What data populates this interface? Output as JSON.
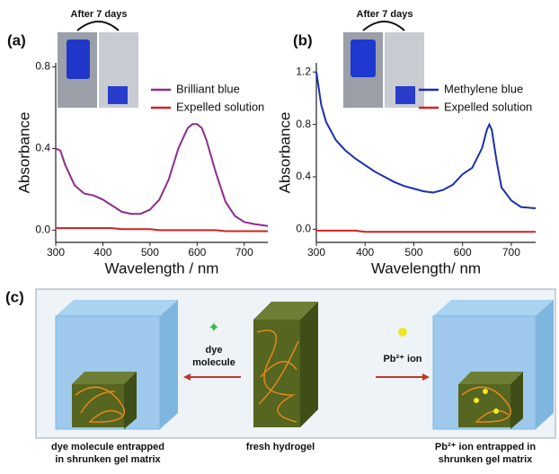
{
  "chart_data": [
    {
      "type": "line",
      "panel_label": "(a)",
      "inset_title": "After 7 days",
      "x_label": "Wavelength / nm",
      "y_label": "Absorbance",
      "xlim": [
        300,
        750
      ],
      "xticks": [
        300,
        400,
        500,
        600,
        700
      ],
      "ylim": [
        -0.06,
        0.82
      ],
      "yticks": [
        {
          "value": 0,
          "label": "0.0"
        },
        0.4,
        0.8
      ],
      "x": [
        300,
        310,
        320,
        340,
        360,
        380,
        400,
        420,
        440,
        460,
        480,
        500,
        520,
        540,
        560,
        580,
        590,
        600,
        610,
        620,
        640,
        660,
        680,
        700,
        720,
        750
      ],
      "series": [
        {
          "name": "Brilliant blue",
          "color": "#8e2c8e",
          "values": [
            0.4,
            0.39,
            0.32,
            0.22,
            0.18,
            0.17,
            0.15,
            0.12,
            0.09,
            0.08,
            0.08,
            0.1,
            0.15,
            0.25,
            0.4,
            0.5,
            0.52,
            0.52,
            0.5,
            0.44,
            0.28,
            0.14,
            0.07,
            0.04,
            0.03,
            0.02
          ]
        },
        {
          "name": "Expelled solution",
          "color": "#d42020",
          "values": [
            0.01,
            0.01,
            0.01,
            0.01,
            0.01,
            0.01,
            0.01,
            0.01,
            0.005,
            0.005,
            0.005,
            0.005,
            0.0,
            0.0,
            0.0,
            0.0,
            0.0,
            0.0,
            0.0,
            0.0,
            0.0,
            -0.005,
            -0.005,
            -0.005,
            -0.005,
            -0.005
          ]
        }
      ]
    },
    {
      "type": "line",
      "panel_label": "(b)",
      "inset_title": "After 7 days",
      "x_label": "Wavelength/ nm",
      "y_label": "Absorbance",
      "xlim": [
        300,
        750
      ],
      "xticks": [
        300,
        400,
        500,
        600,
        700
      ],
      "ylim": [
        -0.1,
        1.27
      ],
      "yticks": [
        {
          "value": 0,
          "label": "0.0"
        },
        0.4,
        0.8,
        1.2
      ],
      "x": [
        300,
        310,
        320,
        340,
        360,
        380,
        400,
        420,
        440,
        460,
        480,
        500,
        520,
        540,
        560,
        580,
        600,
        620,
        640,
        650,
        655,
        660,
        670,
        680,
        700,
        720,
        750
      ],
      "series": [
        {
          "name": "Methylene blue",
          "color": "#1a2fb0",
          "values": [
            1.2,
            0.95,
            0.82,
            0.68,
            0.6,
            0.54,
            0.49,
            0.44,
            0.4,
            0.36,
            0.33,
            0.31,
            0.29,
            0.28,
            0.3,
            0.34,
            0.42,
            0.47,
            0.62,
            0.76,
            0.8,
            0.76,
            0.52,
            0.32,
            0.22,
            0.17,
            0.16
          ]
        },
        {
          "name": "Expelled solution",
          "color": "#d42020",
          "values": [
            -0.01,
            -0.01,
            -0.01,
            -0.01,
            -0.01,
            -0.01,
            -0.02,
            -0.02,
            -0.02,
            -0.02,
            -0.02,
            -0.02,
            -0.02,
            -0.02,
            -0.02,
            -0.02,
            -0.02,
            -0.02,
            -0.02,
            -0.02,
            -0.02,
            -0.02,
            -0.02,
            -0.02,
            -0.02,
            -0.02,
            -0.02
          ]
        }
      ]
    }
  ],
  "diagram": {
    "panel_label": "(c)",
    "left_arrow": [
      "dye",
      "molecule"
    ],
    "right_arrow": "Pb²⁺ ion",
    "left_caption": [
      "dye molecule entrapped",
      "in shrunken gel matrix"
    ],
    "center_caption": "fresh hydrogel",
    "right_caption": [
      "Pb²⁺ ion entrapped in",
      "shrunken gel matrix"
    ]
  }
}
